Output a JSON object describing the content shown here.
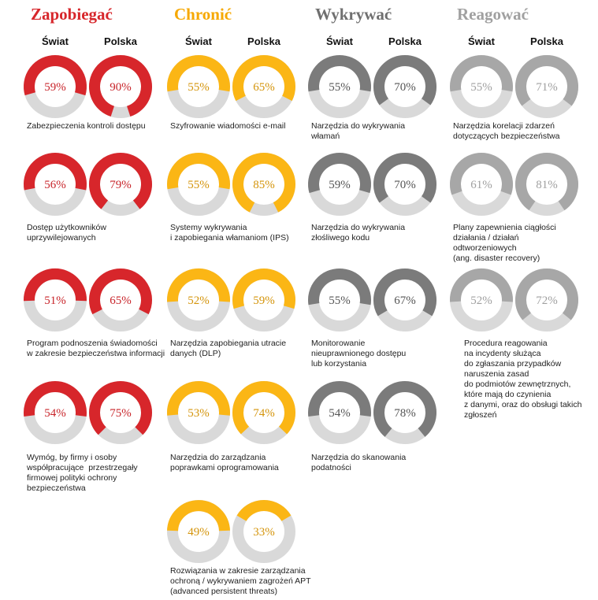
{
  "labels": {
    "world": "Świat",
    "poland": "Polska"
  },
  "colors": {
    "track": "#d9d9d9"
  },
  "chart_data": {
    "type": "donut",
    "columns": [
      {
        "title": "Zapobiegać",
        "color": "#d7262b",
        "title_color": "#d7262b",
        "text_color": "#c8242a",
        "items": [
          {
            "label": "Zabezpieczenia kontroli dostępu",
            "world": 59,
            "poland": 90
          },
          {
            "label": "Dostęp użytkowników\nuprzywilejowanych",
            "world": 56,
            "poland": 79
          },
          {
            "label": "Program podnoszenia świadomości\nw zakresie bezpieczeństwa informacji",
            "world": 51,
            "poland": 65
          },
          {
            "label": "Wymóg, by firmy i osoby\nwspółpracujące  przestrzegały\nfirmowej polityki ochrony\nbezpieczeństwa",
            "world": 54,
            "poland": 75
          }
        ]
      },
      {
        "title": "Chronić",
        "color": "#fbb615",
        "title_color": "#f6a800",
        "text_color": "#d4940a",
        "items": [
          {
            "label": "Szyfrowanie wiadomości e-mail",
            "world": 55,
            "poland": 65
          },
          {
            "label": "Systemy wykrywania\ni zapobiegania włamaniom (IPS)",
            "world": 55,
            "poland": 85
          },
          {
            "label": "Narzędzia zapobiegania utracie\ndanych (DLP)",
            "world": 52,
            "poland": 59
          },
          {
            "label": "Narzędzia do zarządzania\npoprawkami oprogramowania",
            "world": 53,
            "poland": 74
          },
          {
            "label": "Rozwiązania w zakresie zarządzania\nochroną / wykrywaniem zagrożeń APT\n(advanced persistent threats)",
            "world": 49,
            "poland": 33
          }
        ]
      },
      {
        "title": "Wykrywać",
        "color": "#7b7b7b",
        "title_color": "#6f6f6f",
        "text_color": "#555555",
        "items": [
          {
            "label": "Narzędzia do wykrywania\nwłamań",
            "world": 55,
            "poland": 70
          },
          {
            "label": "Narzędzia do wykrywania\nzłośliwego kodu",
            "world": 59,
            "poland": 70
          },
          {
            "label": "Monitorowanie\nnieuprawnionego dostępu\nlub korzystania",
            "world": 55,
            "poland": 67
          },
          {
            "label": "Narzędzia do skanowania\npodatności",
            "world": 54,
            "poland": 78
          }
        ]
      },
      {
        "title": "Reagować",
        "color": "#a7a7a7",
        "title_color": "#a0a0a0",
        "text_color": "#a0a0a0",
        "items": [
          {
            "label": "Narzędzia korelacji zdarzeń\ndotyczących bezpieczeństwa",
            "world": 55,
            "poland": 71
          },
          {
            "label": "Plany zapewnienia ciągłości\ndziałania / działań\nodtworzeniowych\n(ang. disaster recovery)",
            "world": 61,
            "poland": 81
          },
          {
            "label": "Procedura reagowania\nna incydenty służąca\ndo zgłaszania przypadków\nnaruszenia zasad\ndo podmiotów zewnętrznych,\nktóre mają do czynienia\nz danymi, oraz do obsługi takich\nzgłoszeń",
            "world": 52,
            "poland": 72
          }
        ]
      }
    ]
  }
}
